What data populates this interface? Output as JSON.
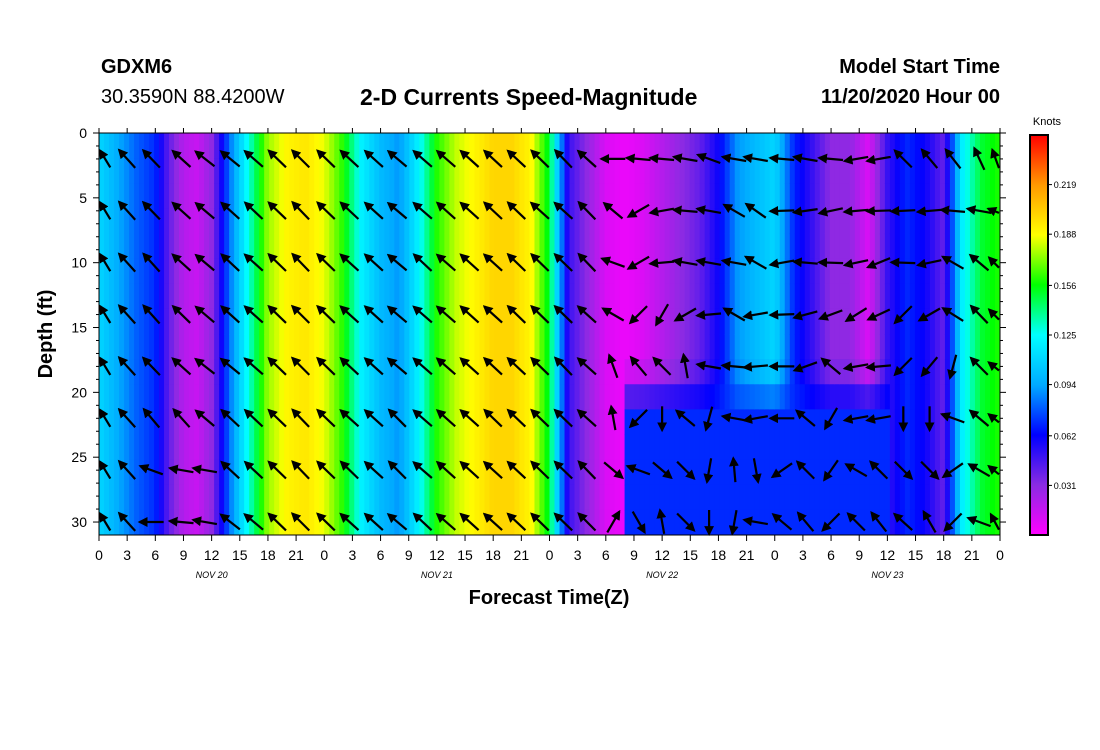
{
  "header": {
    "station": "GDXM6",
    "coords": "30.3590N 88.4200W",
    "title": "2-D Currents Speed-Magnitude",
    "model_start_label": "Model Start Time",
    "model_start_value": "11/20/2020 Hour 00"
  },
  "chart_data": {
    "type": "heatmap",
    "title": "2-D Currents Speed-Magnitude",
    "xlabel": "Forecast Time(Z)",
    "ylabel": "Depth (ft)",
    "x_tick_labels": [
      "0",
      "3",
      "6",
      "9",
      "12",
      "15",
      "18",
      "21",
      "0",
      "3",
      "6",
      "9",
      "12",
      "15",
      "18",
      "21",
      "0",
      "3",
      "6",
      "9",
      "12",
      "15",
      "18",
      "21",
      "0",
      "3",
      "6",
      "9",
      "12",
      "15",
      "18",
      "21",
      "0"
    ],
    "date_labels": [
      "NOV 20",
      "NOV 21",
      "NOV 22",
      "NOV 23"
    ],
    "x_range_hours": [
      0,
      96
    ],
    "y_tick_labels": [
      "0",
      "5",
      "10",
      "15",
      "20",
      "25",
      "30"
    ],
    "y_range_ft": [
      0,
      31
    ],
    "y_inverted": true,
    "colorbar": {
      "unit": "Knots",
      "tick_labels": [
        "0.219",
        "0.188",
        "0.156",
        "0.125",
        "0.094",
        "0.062",
        "0.031"
      ],
      "range": [
        0,
        0.25
      ],
      "colors": [
        "#ff00ff",
        "#8a2be2",
        "#0000ff",
        "#00aaff",
        "#00ffff",
        "#00ff00",
        "#ffff00",
        "#ff9900",
        "#ff0000"
      ]
    },
    "speed_profile_hours": [
      0,
      2,
      4,
      6,
      7.5,
      9,
      10.5,
      12,
      14,
      16,
      18,
      20,
      22,
      24,
      26,
      28,
      30,
      32,
      34,
      36,
      38,
      40,
      42,
      44,
      46,
      48,
      50,
      52,
      54,
      56,
      58,
      60,
      62,
      64,
      66,
      68,
      70,
      72,
      74,
      76,
      78,
      80,
      82,
      84,
      86,
      88,
      90,
      92,
      94,
      96
    ],
    "speed_profile_knots": [
      0.11,
      0.095,
      0.08,
      0.07,
      0.04,
      0.02,
      0.015,
      0.03,
      0.085,
      0.13,
      0.175,
      0.19,
      0.195,
      0.185,
      0.16,
      0.12,
      0.1,
      0.09,
      0.12,
      0.16,
      0.18,
      0.19,
      0.2,
      0.2,
      0.19,
      0.15,
      0.05,
      0.03,
      0.01,
      0.005,
      0.01,
      0.02,
      0.03,
      0.04,
      0.06,
      0.09,
      0.1,
      0.11,
      0.07,
      0.05,
      0.03,
      0.03,
      0.01,
      0.05,
      0.07,
      0.06,
      0.04,
      0.12,
      0.15,
      0.16
    ],
    "deep_anomaly": {
      "hours": [
        56,
        84
      ],
      "depth_ft": [
        18,
        31
      ],
      "knots": 0.07
    },
    "vector_times_hours": [
      0.3,
      3,
      5.6,
      8.8,
      11.3,
      14,
      16.5,
      19,
      21.5,
      24.2,
      26.7,
      29.3,
      31.8,
      34.5,
      37,
      39.5,
      42,
      44.5,
      47,
      49.5,
      52,
      54.8,
      57.5,
      60,
      62.5,
      65,
      67.7,
      70,
      72.8,
      75.3,
      78,
      80.7,
      83.1,
      85.7,
      88.5,
      91,
      93.8,
      96
    ],
    "vector_depths_ft": [
      2,
      6,
      10,
      14,
      18,
      22,
      26,
      30
    ],
    "vector_direction_deg": [
      [
        225,
        228,
        226,
        222,
        218,
        219,
        221,
        224,
        225,
        224,
        223,
        222,
        220,
        221,
        221,
        222,
        223,
        223,
        224,
        226,
        222,
        180,
        185,
        185,
        190,
        200,
        190,
        190,
        185,
        190,
        185,
        170,
        170,
        225,
        230,
        232,
        245,
        230
      ],
      [
        225,
        228,
        226,
        222,
        220,
        222,
        223,
        224,
        226,
        224,
        223,
        222,
        220,
        221,
        222,
        222,
        223,
        224,
        222,
        222,
        226,
        220,
        150,
        170,
        185,
        190,
        210,
        215,
        178,
        172,
        168,
        175,
        178,
        177,
        175,
        185,
        190,
        190
      ],
      [
        225,
        228,
        228,
        222,
        220,
        223,
        222,
        224,
        226,
        224,
        222,
        222,
        220,
        223,
        221,
        222,
        222,
        224,
        224,
        224,
        226,
        200,
        150,
        175,
        190,
        190,
        190,
        210,
        170,
        185,
        182,
        168,
        158,
        182,
        168,
        210,
        220,
        205
      ],
      [
        225,
        228,
        228,
        224,
        220,
        222,
        222,
        224,
        225,
        224,
        222,
        222,
        220,
        221,
        221,
        222,
        222,
        224,
        224,
        224,
        222,
        210,
        135,
        120,
        150,
        175,
        210,
        170,
        178,
        165,
        160,
        148,
        155,
        135,
        150,
        212,
        226,
        205
      ],
      [
        225,
        228,
        226,
        222,
        218,
        219,
        221,
        224,
        225,
        224,
        223,
        222,
        220,
        221,
        221,
        222,
        223,
        223,
        224,
        226,
        222,
        250,
        230,
        225,
        260,
        190,
        185,
        175,
        180,
        160,
        220,
        170,
        175,
        135,
        130,
        105,
        225,
        200
      ],
      [
        225,
        228,
        230,
        228,
        220,
        223,
        223,
        224,
        226,
        224,
        222,
        222,
        225,
        221,
        222,
        222,
        224,
        224,
        224,
        224,
        222,
        260,
        135,
        90,
        220,
        105,
        190,
        170,
        180,
        220,
        120,
        170,
        170,
        90,
        90,
        200,
        220,
        200
      ],
      [
        225,
        228,
        200,
        190,
        190,
        223,
        223,
        224,
        226,
        224,
        224,
        222,
        225,
        221,
        222,
        222,
        222,
        223,
        224,
        224,
        226,
        40,
        200,
        40,
        45,
        100,
        265,
        80,
        145,
        225,
        125,
        210,
        225,
        45,
        45,
        145,
        210,
        200
      ],
      [
        225,
        228,
        180,
        185,
        190,
        218,
        220,
        224,
        225,
        224,
        222,
        222,
        220,
        223,
        221,
        222,
        222,
        223,
        224,
        224,
        225,
        300,
        60,
        260,
        45,
        90,
        100,
        190,
        220,
        230,
        135,
        225,
        232,
        222,
        240,
        135,
        200,
        220
      ]
    ]
  }
}
